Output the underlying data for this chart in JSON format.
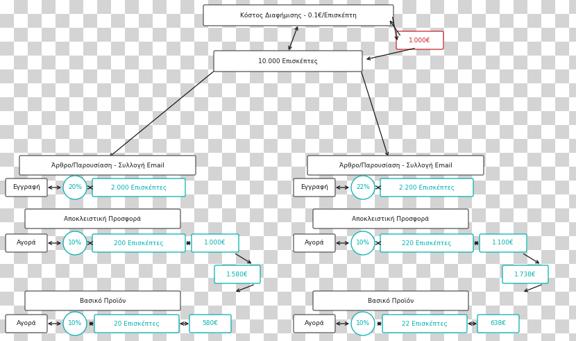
{
  "bg_checker_light": "#ffffff",
  "bg_checker_dark": "#d4d4d4",
  "checker_size": 20,
  "fig_width": 8.3,
  "fig_height": 4.91,
  "dpi": 100,
  "top_box_text": "Κόστος Διαφήμισης - 0.1€/Επισκέπτη",
  "cost_text": "1.000€",
  "visitors_text": "10.000 Επισκέπτες",
  "left": {
    "article_text": "Άρθρο/Παρουσίαση - Συλλογή Email",
    "reg_label": "Εγγραφή",
    "reg_pct": "20%",
    "reg_visitors": "2.000 Επισκέπτες",
    "offer_text": "Αποκλειστική Προσφορά",
    "buy_label": "Αγορά",
    "buy_pct": "10%",
    "buy_visitors": "200 Επισκέπτες",
    "buy_revenue": "1.000€",
    "sub_total": "1.580€",
    "product_text": "Βασικό Προϊόν",
    "sub_buy_label": "Αγορά",
    "sub_buy_pct": "10%",
    "sub_buy_visitors": "20 Επισκέπτες",
    "sub_buy_revenue": "580€"
  },
  "right": {
    "article_text": "Άρθρο/Παρουσίαση - Συλλογή Email",
    "reg_label": "Εγγραφή",
    "reg_pct": "22%",
    "reg_visitors": "2.200 Επισκέπτες",
    "offer_text": "Αποκλειστική Προσφορά",
    "buy_label": "Αγορά",
    "buy_pct": "10%",
    "buy_visitors": "220 Επισκέπτες",
    "buy_revenue": "1.100€",
    "sub_total": "1.738€",
    "product_text": "Βασικό Προϊόν",
    "sub_buy_label": "Αγορά",
    "sub_buy_pct": "10%",
    "sub_buy_visitors": "22 Επισκέπτες",
    "sub_buy_revenue": "638€"
  },
  "teal": "#00b0b0",
  "red": "#cc2222",
  "black": "#1a1a1a",
  "font_size": 7.0,
  "small_font": 6.5
}
